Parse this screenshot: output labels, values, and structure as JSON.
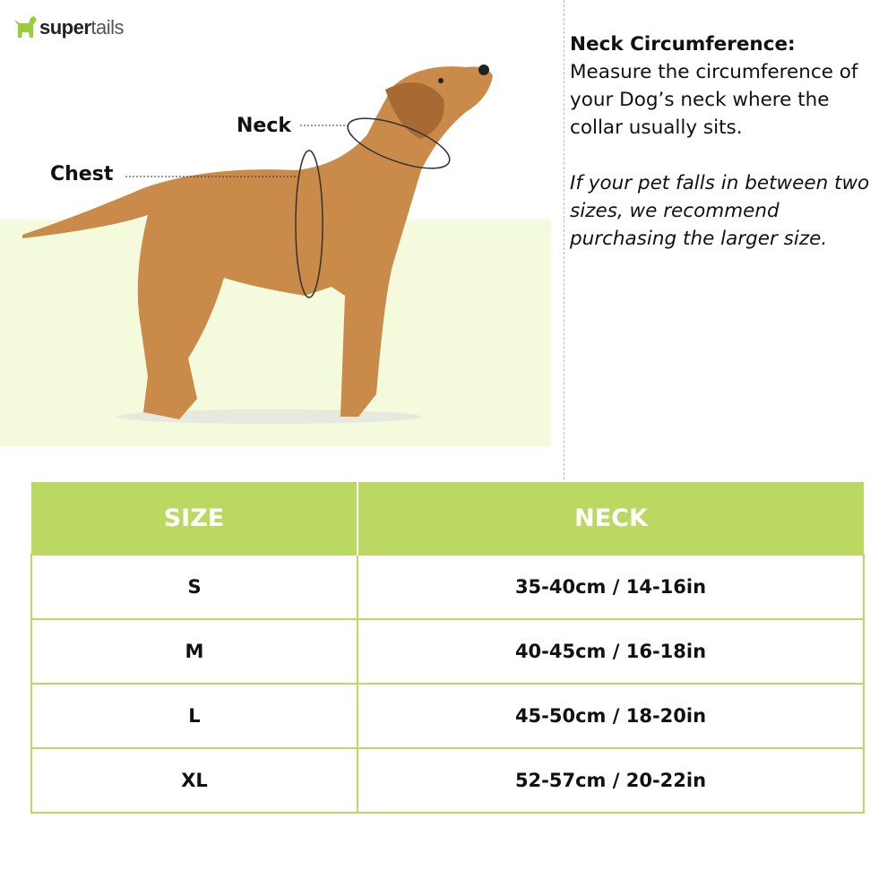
{
  "brand": {
    "logo_text_bold": "super",
    "logo_text_light": "tails"
  },
  "diagram": {
    "neck_label": "Neck",
    "chest_label": "Chest"
  },
  "info": {
    "heading": "Neck Circumference:",
    "body": "Measure the circumference of your Dog’s neck where the collar usually sits.",
    "note": "If your pet falls in between two sizes, we recommend purchasing the larger size."
  },
  "colors": {
    "accent": "#bad862",
    "light_bg": "#f3fbdc"
  },
  "table": {
    "headers": [
      "SIZE",
      "NECK"
    ],
    "rows": [
      {
        "size": "S",
        "neck": "35-40cm / 14-16in"
      },
      {
        "size": "M",
        "neck": "40-45cm / 16-18in"
      },
      {
        "size": "L",
        "neck": "45-50cm / 18-20in"
      },
      {
        "size": "XL",
        "neck": "52-57cm / 20-22in"
      }
    ]
  }
}
